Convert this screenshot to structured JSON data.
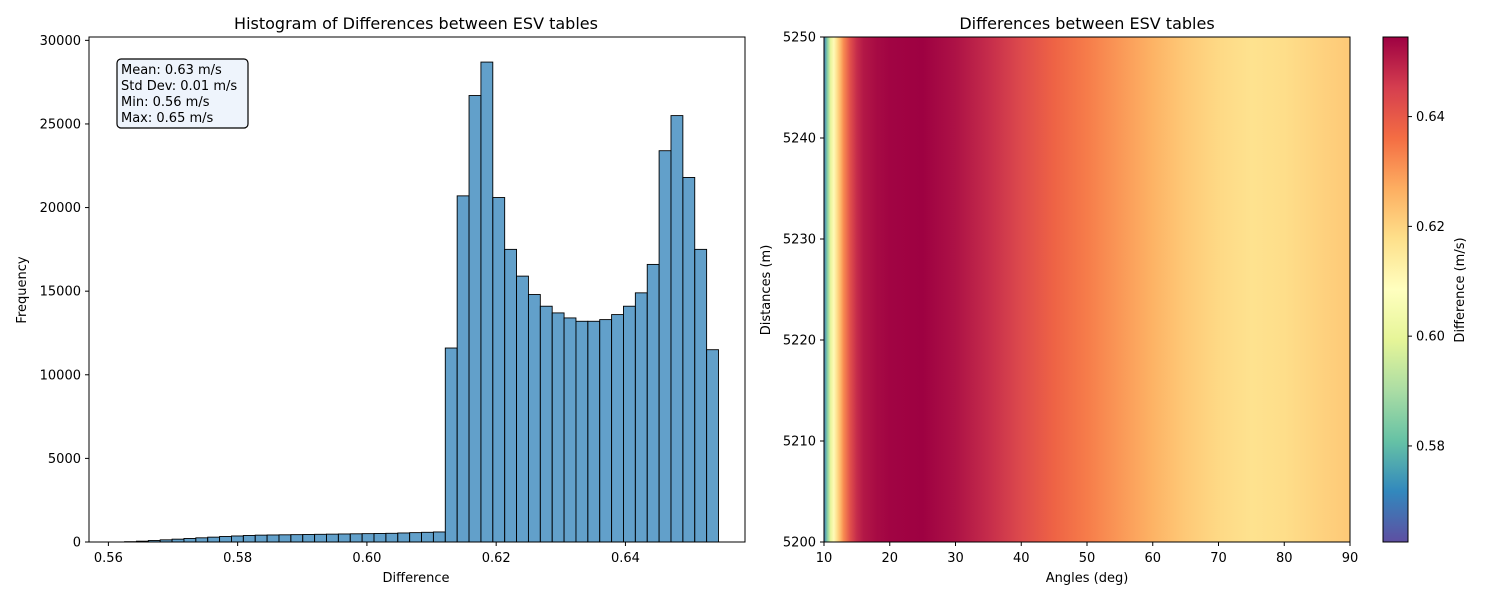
{
  "chart_data": [
    {
      "type": "bar",
      "title": "Histogram of Differences between ESV tables",
      "xlabel": "Difference",
      "ylabel": "Frequency",
      "xlim": [
        0.557,
        0.6585
      ],
      "ylim": [
        0,
        30200
      ],
      "xticks": [
        "0.56",
        "0.58",
        "0.60",
        "0.62",
        "0.64"
      ],
      "yticks": [
        "0",
        "5000",
        "10000",
        "15000",
        "20000",
        "25000",
        "30000"
      ],
      "bin_start": 0.5625,
      "bin_width": 0.001838,
      "values": [
        20,
        50,
        90,
        130,
        170,
        210,
        250,
        290,
        330,
        360,
        390,
        410,
        420,
        430,
        440,
        450,
        460,
        470,
        480,
        490,
        500,
        510,
        520,
        540,
        560,
        580,
        600,
        11600,
        20700,
        26700,
        28700,
        20600,
        17500,
        15900,
        14800,
        14100,
        13700,
        13400,
        13200,
        13200,
        13300,
        13600,
        14100,
        14900,
        16600,
        23400,
        25500,
        21800,
        17500,
        11500
      ],
      "bar_color": "#1f77b4",
      "stats": [
        "Mean: 0.63 m/s",
        "Std Dev: 0.01 m/s",
        "Min: 0.56 m/s",
        "Max: 0.65 m/s"
      ]
    },
    {
      "type": "heatmap",
      "title": "Differences between ESV tables",
      "xlabel": "Angles (deg)",
      "ylabel": "Distances (m)",
      "xlim": [
        10,
        90
      ],
      "ylim": [
        5200,
        5250
      ],
      "xticks": [
        "10",
        "20",
        "30",
        "40",
        "50",
        "60",
        "70",
        "80",
        "90"
      ],
      "yticks": [
        "5200",
        "5210",
        "5220",
        "5230",
        "5240",
        "5250"
      ],
      "colormap": "Spectral_r",
      "colorbar_label": "Difference (m/s)",
      "colorbar_range": [
        0.5625,
        0.6545
      ],
      "colorbar_ticks": [
        "0.58",
        "0.60",
        "0.62",
        "0.64"
      ],
      "profile_angles": [
        10,
        10.5,
        11,
        11.5,
        12,
        12.5,
        13,
        14,
        15,
        16,
        18,
        20,
        25,
        30,
        35,
        40,
        45,
        50,
        55,
        60,
        65,
        70,
        75,
        80,
        85,
        90
      ],
      "profile_values": [
        0.57,
        0.585,
        0.6,
        0.61,
        0.618,
        0.625,
        0.632,
        0.642,
        0.648,
        0.651,
        0.653,
        0.654,
        0.6545,
        0.652,
        0.648,
        0.643,
        0.638,
        0.634,
        0.63,
        0.626,
        0.622,
        0.619,
        0.617,
        0.618,
        0.62,
        0.622
      ]
    }
  ]
}
